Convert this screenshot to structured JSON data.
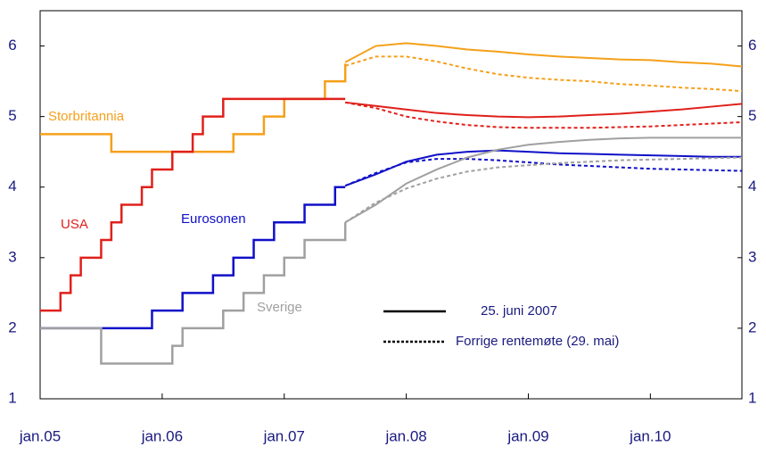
{
  "chart_data": {
    "type": "line",
    "xlim": [
      0,
      69
    ],
    "xticks": [
      {
        "value": 0,
        "label": "jan.05"
      },
      {
        "value": 12,
        "label": "jan.06"
      },
      {
        "value": 24,
        "label": "jan.07"
      },
      {
        "value": 36,
        "label": "jan.08"
      },
      {
        "value": 48,
        "label": "jan.09"
      },
      {
        "value": 60,
        "label": "jan.10"
      }
    ],
    "ylim": [
      1,
      6.5
    ],
    "yticks": [
      1,
      2,
      3,
      4,
      5,
      6
    ],
    "y2lim": [
      1,
      6.5
    ],
    "y2ticks": [
      1,
      2,
      3,
      4,
      5,
      6
    ],
    "history_x": [
      0,
      1,
      2,
      3,
      4,
      5,
      6,
      7,
      8,
      9,
      10,
      11,
      12,
      13,
      14,
      15,
      16,
      17,
      18,
      19,
      20,
      21,
      22,
      23,
      24,
      25,
      26,
      27,
      28,
      29,
      30
    ],
    "forecast_x": [
      30,
      33,
      36,
      39,
      42,
      45,
      48,
      51,
      54,
      57,
      60,
      63,
      66,
      69
    ],
    "legend": {
      "current": "25. juni 2007",
      "previous": "Forrige rentemøte (29. mai)"
    },
    "series": [
      {
        "name": "Storbritannia",
        "color": "#f5a01a",
        "history": [
          4.75,
          4.75,
          4.75,
          4.75,
          4.75,
          4.75,
          4.75,
          4.5,
          4.5,
          4.5,
          4.5,
          4.5,
          4.5,
          4.5,
          4.5,
          4.5,
          4.5,
          4.5,
          4.5,
          4.75,
          4.75,
          4.75,
          5.0,
          5.0,
          5.25,
          5.25,
          5.25,
          5.25,
          5.5,
          5.5,
          5.75
        ],
        "forecast": [
          5.77,
          6.0,
          6.04,
          6.0,
          5.95,
          5.92,
          5.88,
          5.85,
          5.83,
          5.81,
          5.8,
          5.77,
          5.75,
          5.71
        ],
        "previous": [
          5.72,
          5.85,
          5.85,
          5.78,
          5.68,
          5.6,
          5.55,
          5.52,
          5.5,
          5.46,
          5.44,
          5.41,
          5.39,
          5.36
        ]
      },
      {
        "name": "USA",
        "color": "#e0201b",
        "history": [
          2.25,
          2.25,
          2.5,
          2.75,
          3.0,
          3.0,
          3.25,
          3.5,
          3.75,
          3.75,
          4.0,
          4.25,
          4.25,
          4.5,
          4.5,
          4.75,
          5.0,
          5.0,
          5.25,
          5.25,
          5.25,
          5.25,
          5.25,
          5.25,
          5.25,
          5.25,
          5.25,
          5.25,
          5.25,
          5.25,
          5.25
        ],
        "forecast": [
          5.2,
          5.15,
          5.1,
          5.05,
          5.02,
          5.0,
          4.99,
          5.0,
          5.02,
          5.04,
          5.07,
          5.1,
          5.14,
          5.18
        ],
        "previous": [
          5.2,
          5.12,
          5.0,
          4.93,
          4.88,
          4.85,
          4.84,
          4.84,
          4.84,
          4.85,
          4.86,
          4.88,
          4.9,
          4.92
        ]
      },
      {
        "name": "Eurosonen",
        "color": "#1010c8",
        "history": [
          2.0,
          2.0,
          2.0,
          2.0,
          2.0,
          2.0,
          2.0,
          2.0,
          2.0,
          2.0,
          2.0,
          2.25,
          2.25,
          2.25,
          2.5,
          2.5,
          2.5,
          2.75,
          2.75,
          3.0,
          3.0,
          3.25,
          3.25,
          3.5,
          3.5,
          3.5,
          3.75,
          3.75,
          3.75,
          4.0,
          4.0
        ],
        "forecast": [
          4.02,
          4.18,
          4.36,
          4.46,
          4.5,
          4.52,
          4.5,
          4.48,
          4.47,
          4.46,
          4.45,
          4.44,
          4.43,
          4.43
        ],
        "previous": [
          4.02,
          4.2,
          4.35,
          4.4,
          4.4,
          4.38,
          4.35,
          4.32,
          4.3,
          4.28,
          4.26,
          4.25,
          4.24,
          4.23
        ]
      },
      {
        "name": "Sverige",
        "color": "#a0a0a0",
        "history": [
          2.0,
          2.0,
          2.0,
          2.0,
          2.0,
          2.0,
          1.5,
          1.5,
          1.5,
          1.5,
          1.5,
          1.5,
          1.5,
          1.75,
          2.0,
          2.0,
          2.0,
          2.0,
          2.25,
          2.25,
          2.5,
          2.5,
          2.75,
          2.75,
          3.0,
          3.0,
          3.25,
          3.25,
          3.25,
          3.25,
          3.5
        ],
        "forecast": [
          3.5,
          3.75,
          4.05,
          4.25,
          4.42,
          4.53,
          4.6,
          4.64,
          4.67,
          4.69,
          4.7,
          4.7,
          4.7,
          4.7
        ],
        "previous": [
          3.5,
          3.78,
          3.98,
          4.12,
          4.22,
          4.28,
          4.31,
          4.34,
          4.36,
          4.38,
          4.39,
          4.4,
          4.41,
          4.42
        ]
      }
    ]
  }
}
